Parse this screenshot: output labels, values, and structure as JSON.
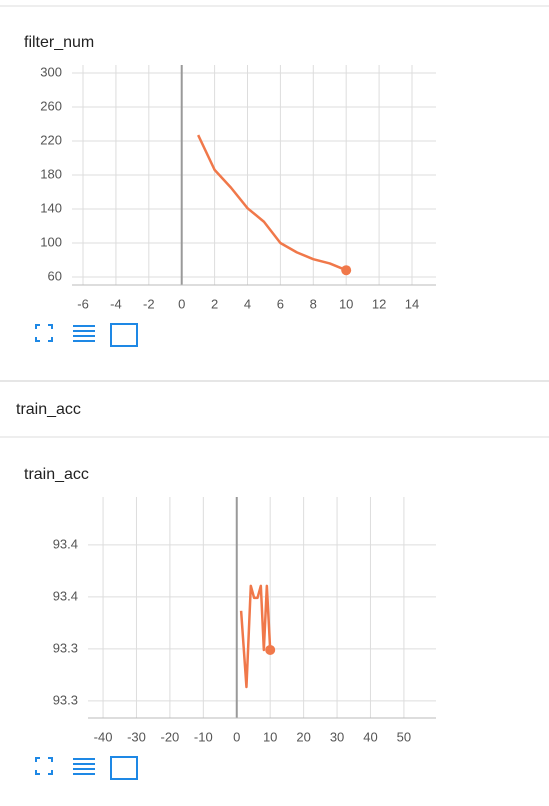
{
  "section": "train_acc",
  "chart_data": [
    {
      "type": "line",
      "title": "filter_num",
      "x": [
        1,
        2,
        3,
        4,
        5,
        6,
        7,
        8,
        9,
        10
      ],
      "series": [
        {
          "color": "#f0784a",
          "values": [
            227,
            186,
            165,
            141,
            125,
            100,
            89,
            81,
            76,
            68
          ]
        }
      ],
      "xlim": [
        -6.67,
        15.46
      ],
      "xticks": [
        -6,
        -4,
        -2,
        0,
        2,
        4,
        6,
        8,
        10,
        12,
        14
      ],
      "ylim": [
        50.6,
        309.4
      ],
      "yticks": [
        60,
        100,
        140,
        180,
        220,
        260,
        300
      ],
      "grid": true
    },
    {
      "type": "line",
      "title": "train_acc",
      "x": [
        1.3,
        2.9,
        4.2,
        5.2,
        6.2,
        7.2,
        8.1,
        9,
        10
      ],
      "series": [
        {
          "color": "#f0784a",
          "values": [
            93.3433,
            93.3067,
            93.3553,
            93.3495,
            93.3495,
            93.3553,
            93.3245,
            93.3553,
            93.3245
          ]
        }
      ],
      "xlim": [
        -44.5,
        59.6
      ],
      "xticks": [
        -40,
        -30,
        -20,
        -10,
        0,
        10,
        20,
        30,
        40,
        50
      ],
      "ylim": [
        93.2918,
        93.398
      ],
      "yticks": [
        {
          "value": 93.3,
          "label": "93.3"
        },
        {
          "value": 93.325,
          "label": "93.3"
        },
        {
          "value": 93.35,
          "label": "93.4"
        },
        {
          "value": 93.375,
          "label": "93.4"
        }
      ],
      "grid": true
    }
  ]
}
